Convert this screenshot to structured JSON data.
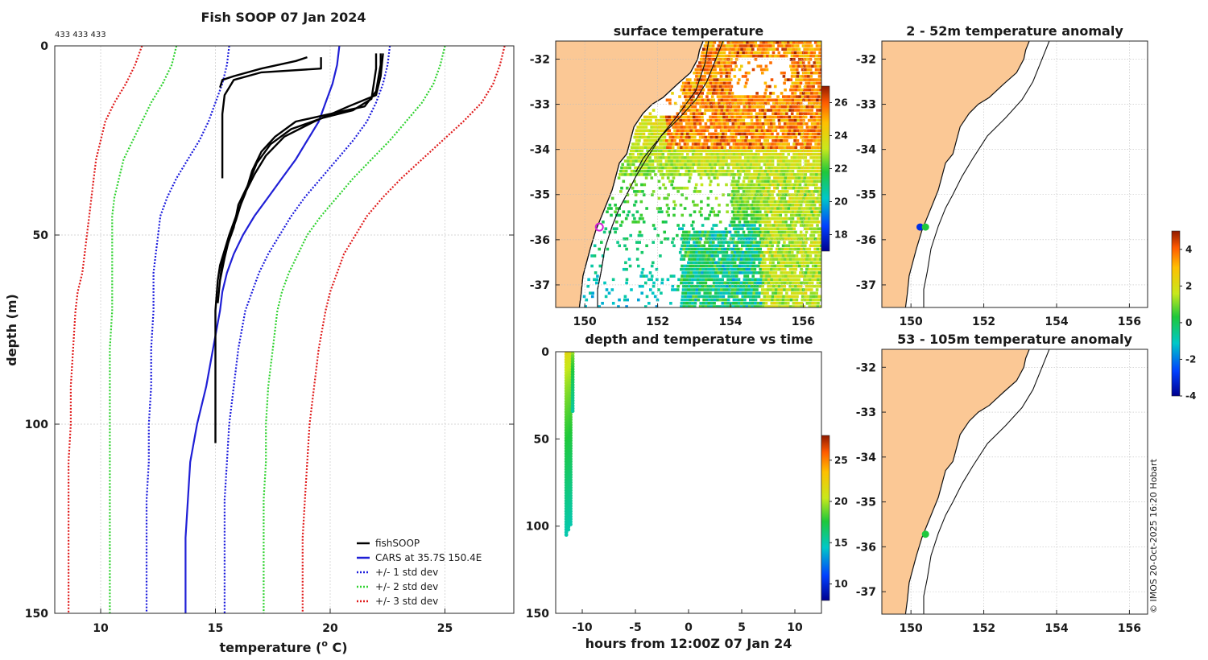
{
  "chart_data": [
    {
      "id": "profile",
      "type": "line",
      "title": "Fish SOOP 07 Jan 2024",
      "subtitle": "433 433 433",
      "xlabel_main": "temperature (",
      "xlabel_sup": "o",
      "xlabel_end": " C)",
      "ylabel": "depth (m)",
      "xlim": [
        8,
        28
      ],
      "ylim": [
        0,
        150
      ],
      "xticks": [
        "10",
        "15",
        "20",
        "25"
      ],
      "yticks": [
        "0",
        "50",
        "100",
        "150"
      ],
      "legend": {
        "position": "bottom-right",
        "entries": [
          "fishSOOP",
          "CARS at 35.7S 150.4E",
          "+/- 1 std dev",
          "+/- 2 std dev",
          "+/- 3 std dev"
        ]
      },
      "colors": {
        "fish": "#000000",
        "cars": "#1f1fd6",
        "std1": "#1a1adc",
        "std2": "#2fd22f",
        "std3": "#e01c1c"
      },
      "depth": [
        0,
        5,
        10,
        15,
        20,
        25,
        30,
        35,
        40,
        45,
        50,
        55,
        60,
        65,
        70,
        80,
        90,
        100,
        110,
        120,
        130,
        140,
        150
      ],
      "cars": [
        20.4,
        20.3,
        20.1,
        19.8,
        19.5,
        19.0,
        18.5,
        17.9,
        17.3,
        16.7,
        16.2,
        15.8,
        15.5,
        15.3,
        15.2,
        14.9,
        14.6,
        14.2,
        13.9,
        13.8,
        13.7,
        13.7,
        13.7
      ],
      "std1_lo": [
        15.6,
        15.5,
        15.3,
        15.0,
        14.7,
        14.3,
        13.8,
        13.3,
        12.9,
        12.6,
        12.5,
        12.4,
        12.3,
        12.3,
        12.3,
        12.2,
        12.2,
        12.1,
        12.1,
        12.0,
        12.0,
        12.0,
        12.0
      ],
      "std1_hi": [
        22.6,
        22.5,
        22.3,
        22.0,
        21.6,
        21.0,
        20.3,
        19.6,
        18.9,
        18.3,
        17.8,
        17.3,
        16.9,
        16.6,
        16.3,
        16.0,
        15.8,
        15.6,
        15.5,
        15.4,
        15.4,
        15.4,
        15.4
      ],
      "std2_lo": [
        13.3,
        13.1,
        12.7,
        12.2,
        11.8,
        11.4,
        11.0,
        10.8,
        10.6,
        10.5,
        10.5,
        10.5,
        10.5,
        10.5,
        10.5,
        10.4,
        10.4,
        10.4,
        10.4,
        10.4,
        10.4,
        10.4,
        10.4
      ],
      "std2_hi": [
        25.0,
        24.8,
        24.5,
        24.0,
        23.3,
        22.6,
        21.8,
        21.0,
        20.3,
        19.6,
        19.0,
        18.6,
        18.2,
        17.9,
        17.7,
        17.5,
        17.3,
        17.2,
        17.2,
        17.1,
        17.1,
        17.1,
        17.1
      ],
      "std3_lo": [
        11.8,
        11.5,
        11.1,
        10.6,
        10.2,
        10.0,
        9.8,
        9.7,
        9.6,
        9.5,
        9.4,
        9.3,
        9.2,
        9.0,
        8.9,
        8.8,
        8.7,
        8.7,
        8.6,
        8.6,
        8.6,
        8.6,
        8.6
      ],
      "std3_hi": [
        27.6,
        27.4,
        27.1,
        26.6,
        25.8,
        24.9,
        24.0,
        23.1,
        22.3,
        21.6,
        21.1,
        20.6,
        20.3,
        20.0,
        19.8,
        19.5,
        19.3,
        19.1,
        19.0,
        18.9,
        18.8,
        18.8,
        18.8
      ],
      "fish_casts": [
        {
          "temp": [
            19.6,
            19.6,
            19.6,
            17.0,
            15.8,
            15.6,
            15.4,
            15.3,
            15.3,
            15.3,
            15.3
          ],
          "depth": [
            3,
            5,
            6,
            7,
            9,
            11,
            13,
            18,
            24,
            30,
            35
          ]
        },
        {
          "temp": [
            19.0,
            18.5,
            17.0,
            15.8,
            15.3,
            15.2
          ],
          "depth": [
            3,
            4,
            6,
            8,
            9,
            11
          ]
        },
        {
          "temp": [
            22.2,
            22.2,
            22.0,
            21.5,
            20.0,
            18.5,
            17.6,
            17.0,
            16.6,
            16.3,
            15.9,
            15.6,
            15.4,
            15.2,
            15.1,
            15.0,
            15.0,
            15.0,
            15.0,
            15.0
          ],
          "depth": [
            2,
            5,
            12,
            16,
            18,
            20,
            24,
            28,
            33,
            39,
            45,
            50,
            54,
            58,
            62,
            70,
            80,
            90,
            100,
            105
          ]
        },
        {
          "temp": [
            22.0,
            22.0,
            21.8,
            21.0,
            19.7,
            18.3,
            17.4,
            16.8,
            16.4,
            16.0,
            15.8,
            15.5,
            15.3,
            15.2,
            15.1
          ],
          "depth": [
            2,
            6,
            14,
            17,
            19,
            22,
            26,
            31,
            37,
            42,
            48,
            53,
            57,
            62,
            68
          ]
        },
        {
          "temp": [
            22.3,
            22.2,
            22.0,
            20.8,
            19.3,
            18.0,
            17.2,
            16.7,
            16.2,
            15.9,
            15.6,
            15.4,
            15.2
          ],
          "depth": [
            2,
            8,
            13,
            16,
            20,
            24,
            29,
            34,
            40,
            46,
            51,
            56,
            62
          ]
        }
      ]
    },
    {
      "id": "surface",
      "type": "heatmap",
      "title": "surface temperature",
      "xlim": [
        149.2,
        156.5
      ],
      "ylim": [
        -37.5,
        -31.6
      ],
      "xticks": [
        "150",
        "152",
        "154",
        "156"
      ],
      "yticks": [
        "-32",
        "-33",
        "-34",
        "-35",
        "-36",
        "-37"
      ],
      "colorbar_range": [
        17,
        27
      ],
      "colorbar_ticks": [
        "18",
        "20",
        "22",
        "24",
        "26"
      ],
      "marker": {
        "lon": 150.4,
        "lat": -35.72,
        "color": "#d21fd2"
      }
    },
    {
      "id": "anomaly_shallow",
      "type": "scatter",
      "title": "2 - 52m temperature anomaly",
      "xlim": [
        149.2,
        156.5
      ],
      "ylim": [
        -37.5,
        -31.6
      ],
      "xticks": [
        "150",
        "152",
        "154",
        "156"
      ],
      "yticks": [
        "-32",
        "-33",
        "-34",
        "-35",
        "-36",
        "-37"
      ],
      "points": [
        {
          "lon": 150.25,
          "lat": -35.72,
          "anomaly": -3.0
        },
        {
          "lon": 150.4,
          "lat": -35.72,
          "anomaly": 0.3
        }
      ]
    },
    {
      "id": "anomaly_deep",
      "type": "scatter",
      "title": "53 - 105m temperature anomaly",
      "xlim": [
        149.2,
        156.5
      ],
      "ylim": [
        -37.5,
        -31.6
      ],
      "xticks": [
        "150",
        "152",
        "154",
        "156"
      ],
      "yticks": [
        "-32",
        "-33",
        "-34",
        "-35",
        "-36",
        "-37"
      ],
      "points": [
        {
          "lon": 150.4,
          "lat": -35.72,
          "anomaly": 0.3
        }
      ],
      "colorbar_range": [
        -4,
        5
      ],
      "colorbar_ticks": [
        "4",
        "2",
        "0",
        "-2",
        "-4"
      ]
    },
    {
      "id": "timeseries",
      "type": "scatter",
      "title": "depth and temperature vs time",
      "xlabel": "hours from 12:00Z 07 Jan 24",
      "xlim": [
        -12.5,
        12.5
      ],
      "ylim": [
        0,
        150
      ],
      "xticks": [
        "-10",
        "-5",
        "0",
        "5",
        "10"
      ],
      "yticks": [
        "0",
        "50",
        "100",
        "150"
      ],
      "casts": [
        {
          "hour": -11.5,
          "depth": [
            0,
            105
          ],
          "temp": [
            22.3,
            15.0
          ]
        },
        {
          "hour": -11.3,
          "depth": [
            0,
            103
          ],
          "temp": [
            22.1,
            15.1
          ]
        },
        {
          "hour": -11.1,
          "depth": [
            0,
            100
          ],
          "temp": [
            22.0,
            15.0
          ]
        },
        {
          "hour": -10.9,
          "depth": [
            1,
            35
          ],
          "temp": [
            19.6,
            15.3
          ]
        }
      ],
      "colorbar_range": [
        8,
        28
      ],
      "colorbar_ticks": [
        "25",
        "20",
        "15",
        "10"
      ]
    }
  ],
  "credit": "© IMOS 20-Oct-2025 16:20 Hobart"
}
